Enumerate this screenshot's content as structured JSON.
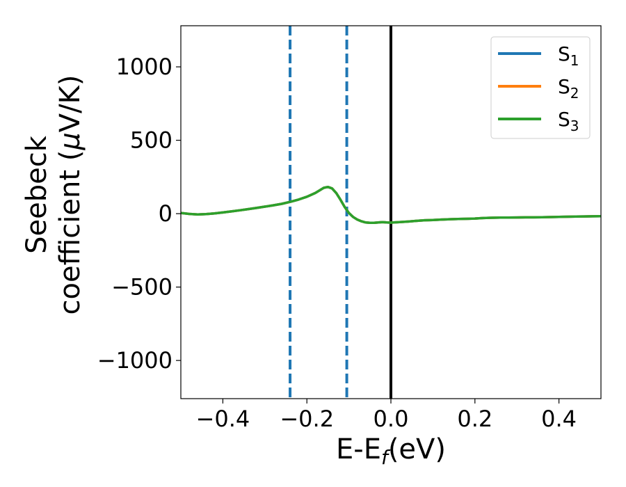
{
  "chart_data": {
    "type": "line",
    "xlabel": "E-E",
    "xlabel_sub": "f",
    "xlabel_unit": "(eV)",
    "ylabel_line1": "Seebeck",
    "ylabel_line2": "coefficient  (",
    "ylabel_mu": "μ",
    "ylabel_tail": "V/K)",
    "xlim": [
      -0.5,
      0.5
    ],
    "ylim": [
      -1260,
      1280
    ],
    "xticks": [
      -0.4,
      -0.2,
      0.0,
      0.2,
      0.4
    ],
    "xtick_labels": [
      "−0.4",
      "−0.2",
      "0.0",
      "0.2",
      "0.4"
    ],
    "yticks": [
      1000,
      500,
      0,
      -500,
      -1000
    ],
    "ytick_labels": [
      "1000",
      "500",
      "0",
      "−500",
      "−1000"
    ],
    "grid": false,
    "legend_position": "top-right",
    "reference_lines": [
      {
        "x": -0.24,
        "style": "dashed",
        "color": "#1f77b4"
      },
      {
        "x": -0.105,
        "style": "dashed",
        "color": "#1f77b4"
      },
      {
        "x": 0.0,
        "style": "solid",
        "color": "#000000"
      }
    ],
    "x": [
      -0.5,
      -0.48,
      -0.46,
      -0.44,
      -0.42,
      -0.4,
      -0.38,
      -0.36,
      -0.34,
      -0.32,
      -0.3,
      -0.28,
      -0.26,
      -0.24,
      -0.22,
      -0.2,
      -0.19,
      -0.18,
      -0.17,
      -0.16,
      -0.15,
      -0.14,
      -0.13,
      -0.12,
      -0.11,
      -0.1,
      -0.09,
      -0.08,
      -0.07,
      -0.06,
      -0.05,
      -0.04,
      -0.03,
      -0.02,
      -0.01,
      0.0,
      0.02,
      0.04,
      0.06,
      0.08,
      0.1,
      0.12,
      0.14,
      0.16,
      0.18,
      0.2,
      0.22,
      0.24,
      0.26,
      0.28,
      0.3,
      0.32,
      0.34,
      0.36,
      0.38,
      0.4,
      0.42,
      0.44,
      0.46,
      0.48,
      0.5
    ],
    "series": [
      {
        "name": "S",
        "sub": "1",
        "color": "#1f77b4",
        "values": [
          5,
          -2,
          -5,
          -3,
          2,
          8,
          15,
          23,
          31,
          39,
          48,
          57,
          67,
          80,
          96,
          115,
          128,
          141,
          158,
          176,
          182,
          172,
          140,
          95,
          45,
          5,
          -22,
          -40,
          -52,
          -60,
          -62,
          -62,
          -60,
          -58,
          -60,
          -61,
          -58,
          -54,
          -49,
          -45,
          -43,
          -40,
          -38,
          -36,
          -35,
          -33,
          -30,
          -28,
          -27,
          -27,
          -26,
          -25,
          -25,
          -24,
          -23,
          -22,
          -21,
          -20,
          -19,
          -18,
          -17
        ]
      },
      {
        "name": "S",
        "sub": "2",
        "color": "#ff7f0e",
        "values": [
          5,
          -2,
          -5,
          -3,
          2,
          8,
          15,
          23,
          31,
          39,
          48,
          57,
          67,
          80,
          96,
          115,
          128,
          141,
          158,
          176,
          182,
          172,
          140,
          95,
          45,
          5,
          -22,
          -40,
          -52,
          -60,
          -62,
          -62,
          -60,
          -58,
          -60,
          -61,
          -58,
          -54,
          -49,
          -45,
          -43,
          -40,
          -38,
          -36,
          -35,
          -33,
          -30,
          -28,
          -27,
          -27,
          -26,
          -25,
          -25,
          -24,
          -23,
          -22,
          -21,
          -20,
          -19,
          -18,
          -17
        ]
      },
      {
        "name": "S",
        "sub": "3",
        "color": "#2ca02c",
        "values": [
          5,
          -2,
          -5,
          -3,
          2,
          8,
          15,
          23,
          31,
          39,
          48,
          57,
          67,
          80,
          96,
          115,
          128,
          141,
          158,
          176,
          182,
          172,
          140,
          95,
          45,
          5,
          -22,
          -40,
          -52,
          -60,
          -62,
          -62,
          -60,
          -58,
          -60,
          -61,
          -58,
          -54,
          -49,
          -45,
          -43,
          -40,
          -38,
          -36,
          -35,
          -33,
          -30,
          -28,
          -27,
          -27,
          -26,
          -25,
          -25,
          -24,
          -23,
          -22,
          -21,
          -20,
          -19,
          -18,
          -17
        ]
      }
    ]
  }
}
